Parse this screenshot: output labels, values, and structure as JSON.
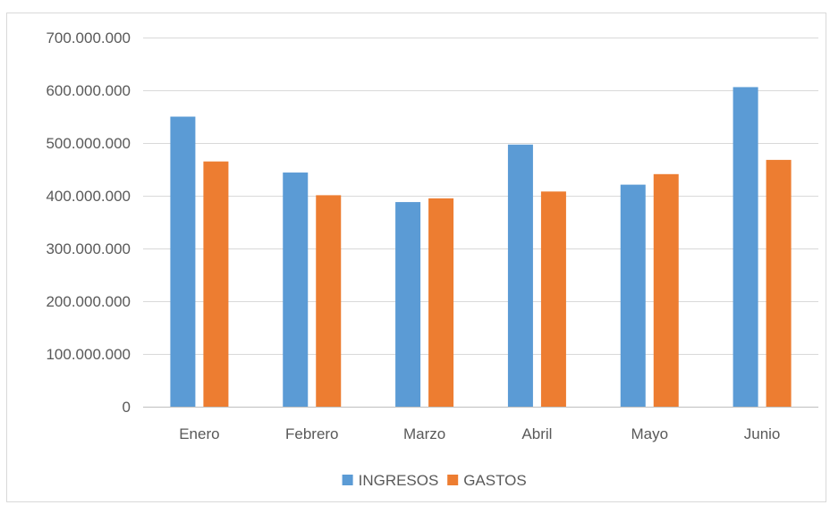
{
  "chart_data": {
    "type": "bar",
    "title": "",
    "xlabel": "",
    "ylabel": "",
    "categories": [
      "Enero",
      "Febrero",
      "Marzo",
      "Abril",
      "Mayo",
      "Junio"
    ],
    "series": [
      {
        "name": "INGRESOS",
        "color": "#5b9bd5",
        "values": [
          550000000,
          444000000,
          388000000,
          497000000,
          421000000,
          606000000
        ]
      },
      {
        "name": "GASTOS",
        "color": "#ed7d31",
        "values": [
          465000000,
          401000000,
          395000000,
          408000000,
          441000000,
          468000000
        ]
      }
    ],
    "ylim": [
      0,
      700000000
    ],
    "yticks": [
      0,
      100000000,
      200000000,
      300000000,
      400000000,
      500000000,
      600000000,
      700000000
    ],
    "ytick_labels": [
      "0",
      "100.000.000",
      "200.000.000",
      "300.000.000",
      "400.000.000",
      "500.000.000",
      "600.000.000",
      "700.000.000"
    ],
    "grid": true,
    "legend_position": "bottom"
  }
}
